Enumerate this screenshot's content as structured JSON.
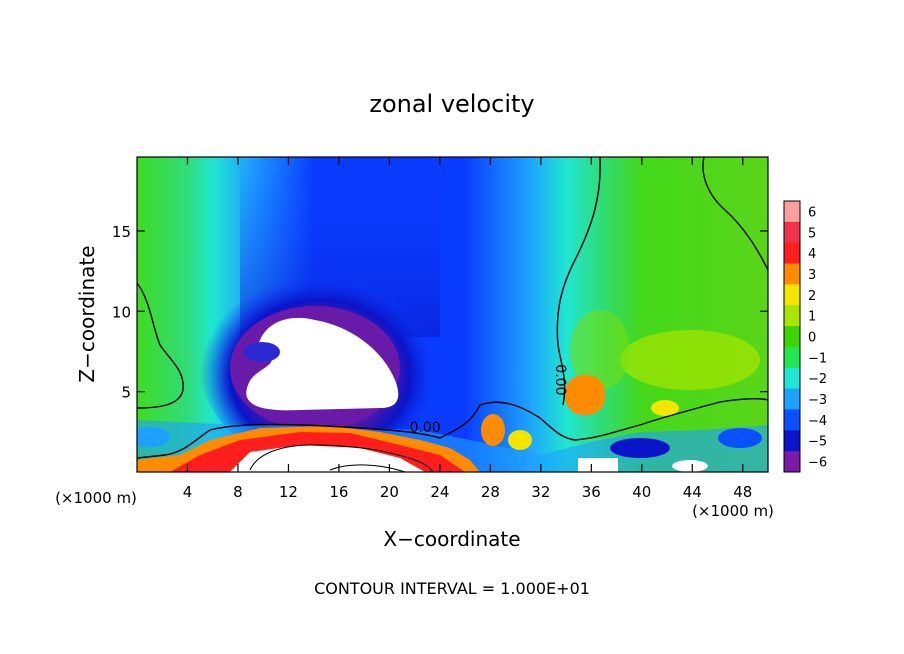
{
  "chart_data": {
    "type": "heatmap",
    "title": "zonal velocity",
    "xlabel": "X−coordinate",
    "ylabel": "Z−coordinate",
    "x_unit_left": "(×1000 m)",
    "x_unit_right": "(×1000 m)",
    "footer": "CONTOUR INTERVAL = 1.000E+01",
    "xlim": [
      0,
      50
    ],
    "ylim": [
      0,
      19.6
    ],
    "x_ticks": [
      4,
      8,
      12,
      16,
      20,
      24,
      28,
      32,
      36,
      40,
      44,
      48
    ],
    "y_ticks": [
      5,
      10,
      15
    ],
    "contour_labels": [
      {
        "text": "0.00",
        "x": 21.6,
        "z": 2.5
      },
      {
        "text": "0.00",
        "x": 33.2,
        "z": 6.7
      }
    ],
    "colorbar": {
      "levels": [
        "6",
        "5",
        "4",
        "3",
        "2",
        "1",
        "0",
        "−1",
        "−2",
        "−3",
        "−4",
        "−5",
        "−6"
      ],
      "colors": [
        "#fb9f9f",
        "#f0324a",
        "#ff1e1e",
        "#ff8c00",
        "#f2e600",
        "#a8e600",
        "#3ed400",
        "#22e650",
        "#20e6d2",
        "#1ea0ff",
        "#0a50ff",
        "#0a14c8",
        "#7a1aa6"
      ]
    }
  }
}
